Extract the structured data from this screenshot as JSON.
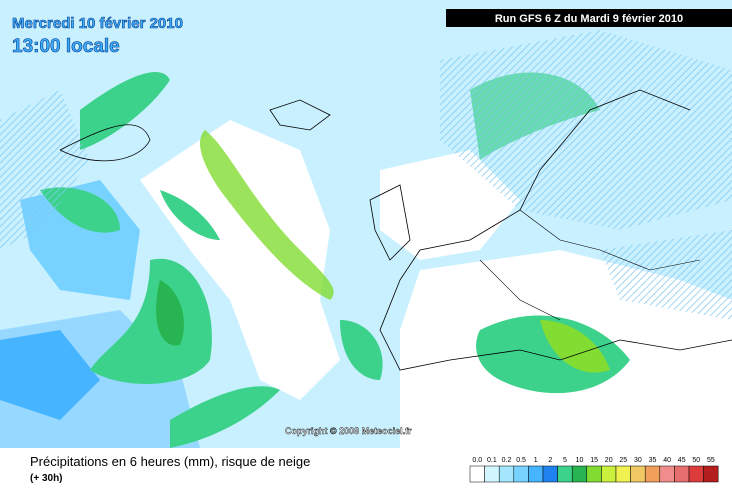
{
  "header": {
    "date": "Mercredi 10 février 2010",
    "time": "13:00 locale",
    "run": "Run GFS 6 Z du Mardi 9 février 2010"
  },
  "copyright": "Copyright © 2008 Meteociel.fr",
  "footer": {
    "title": "Précipitations en 6 heures (mm), risque de neige",
    "lead": "(+ 30h)"
  },
  "legend": {
    "labels": [
      "0.0",
      "0.1",
      "0.2",
      "0.5",
      "1",
      "2",
      "5",
      "10",
      "15",
      "20",
      "25",
      "30",
      "35",
      "40",
      "45",
      "50",
      "55"
    ],
    "colors": [
      "#ffffff",
      "#d2f5ff",
      "#a5e6ff",
      "#78d2ff",
      "#46b4ff",
      "#1e82f0",
      "#3cd28c",
      "#28b450",
      "#82dc32",
      "#c8f03c",
      "#f0f050",
      "#f0c864",
      "#f0a05a",
      "#f08c8c",
      "#e66e6e",
      "#dc3c3c",
      "#b41e1e"
    ]
  }
}
